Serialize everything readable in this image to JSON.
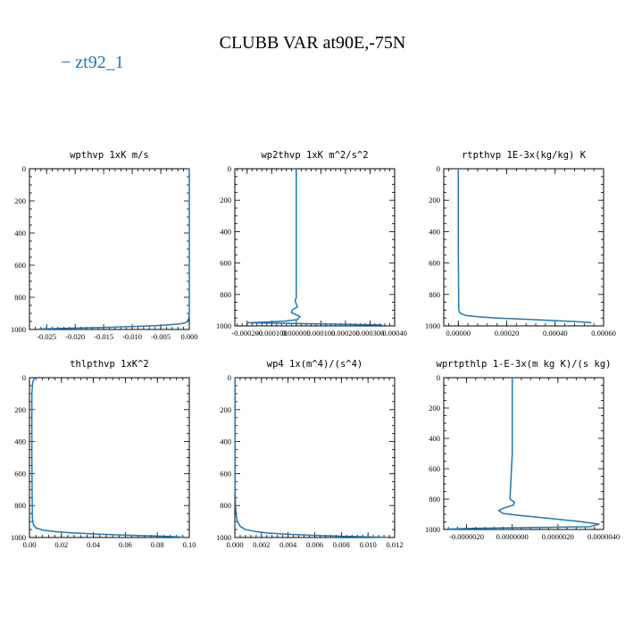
{
  "figure": {
    "title": "CLUBB VAR at90E,-75N",
    "legend_label": "zt92_1",
    "series_color": "#1f77b4"
  },
  "chart_data": [
    {
      "type": "line",
      "title": "wpthvp   1xK m/s",
      "xlim": [
        -0.028,
        0.0
      ],
      "ylim": [
        1000,
        0
      ],
      "xticks": [
        -0.025,
        -0.02,
        -0.015,
        -0.01,
        -0.005,
        0.0
      ],
      "xtick_labels": [
        "-0.025",
        "-0.020",
        "-0.015",
        "-0.010",
        "-0.005",
        "0.000"
      ],
      "yticks": [
        0,
        200,
        400,
        600,
        800,
        1000
      ],
      "ytick_labels": [
        "0",
        "200",
        "400",
        "600",
        "800",
        "1000"
      ],
      "x": [
        0.0,
        0.0,
        0.0,
        -0.0001,
        -0.0003,
        -0.0008,
        -0.002,
        -0.005,
        -0.01,
        -0.016,
        -0.022,
        -0.0265
      ],
      "y": [
        0,
        500,
        900,
        930,
        950,
        960,
        967,
        975,
        982,
        988,
        993,
        997
      ]
    },
    {
      "type": "line",
      "title": "wp2thvp   1xK m^2/s^2",
      "xlim": [
        -0.00025,
        0.0004
      ],
      "ylim": [
        1000,
        0
      ],
      "xticks": [
        -0.0002,
        -0.0001,
        0.0,
        0.0001,
        0.0002,
        0.0003,
        0.0004
      ],
      "xtick_labels": [
        "-0.000200",
        "-0.000100",
        "0.000000",
        "0.000100",
        "0.000200",
        "0.000300",
        "0.00040"
      ],
      "yticks": [
        0,
        200,
        400,
        600,
        800,
        1000
      ],
      "ytick_labels": [
        "0",
        "200",
        "400",
        "600",
        "800",
        "1000"
      ],
      "x": [
        0.0,
        0.0,
        0.0,
        -5e-06,
        0.0,
        5e-06,
        -1.5e-05,
        -2e-05,
        1.5e-05,
        5e-06,
        -5e-05,
        -0.00012,
        -0.0002,
        0.0001,
        0.0002,
        0.00035
      ],
      "y": [
        0,
        500,
        820,
        840,
        860,
        880,
        895,
        915,
        940,
        960,
        970,
        975,
        980,
        987,
        990,
        994
      ]
    },
    {
      "type": "line",
      "title": "rtpthvp   1E-3x(kg/kg) K",
      "xlim": [
        -6e-05,
        0.0006
      ],
      "ylim": [
        1000,
        0
      ],
      "xticks": [
        0.0,
        0.0002,
        0.0004,
        0.0006
      ],
      "xtick_labels": [
        "0.00000",
        "0.00020",
        "0.00040",
        "0.00060"
      ],
      "yticks": [
        0,
        200,
        400,
        600,
        800,
        1000
      ],
      "ytick_labels": [
        "0",
        "200",
        "400",
        "600",
        "800",
        "1000"
      ],
      "x": [
        0.0,
        0.0,
        2e-06,
        8e-06,
        3e-05,
        8e-05,
        0.00016,
        0.00026,
        0.00036,
        0.00045,
        0.00052,
        0.00055
      ],
      "y": [
        0,
        500,
        900,
        920,
        933,
        942,
        950,
        957,
        964,
        970,
        976,
        980
      ]
    },
    {
      "type": "line",
      "title": "thlpthvp   1xK^2",
      "xlim": [
        0.0,
        0.1
      ],
      "ylim": [
        1000,
        0
      ],
      "xticks": [
        0.0,
        0.02,
        0.04,
        0.06,
        0.08,
        0.1
      ],
      "xtick_labels": [
        "0.00",
        "0.02",
        "0.04",
        "0.06",
        "0.08",
        "0.10"
      ],
      "yticks": [
        0,
        200,
        400,
        600,
        800,
        1000
      ],
      "ytick_labels": [
        "0",
        "200",
        "400",
        "600",
        "800",
        "1000"
      ],
      "x": [
        0.003,
        0.002,
        0.0015,
        0.0015,
        0.0018,
        0.0025,
        0.004,
        0.008,
        0.015,
        0.025,
        0.04,
        0.06,
        0.08,
        0.093,
        0.096
      ],
      "y": [
        0,
        30,
        100,
        500,
        880,
        920,
        940,
        953,
        962,
        970,
        978,
        985,
        991,
        996,
        999
      ]
    },
    {
      "type": "line",
      "title": "wp4   1x(m^4)/(s^4)",
      "xlim": [
        0.0,
        0.012
      ],
      "ylim": [
        1000,
        0
      ],
      "xticks": [
        0.0,
        0.002,
        0.004,
        0.006,
        0.008,
        0.01,
        0.012
      ],
      "xtick_labels": [
        "0.000",
        "0.002",
        "0.004",
        "0.006",
        "0.008",
        "0.010",
        "0.012"
      ],
      "yticks": [
        0,
        200,
        400,
        600,
        800,
        1000
      ],
      "ytick_labels": [
        "0",
        "200",
        "400",
        "600",
        "800",
        "1000"
      ],
      "x": [
        2e-05,
        2e-05,
        5e-05,
        0.0001,
        0.0002,
        0.0004,
        0.0008,
        0.0015,
        0.0025,
        0.004,
        0.006,
        0.008,
        0.01,
        0.0115
      ],
      "y": [
        0,
        700,
        800,
        860,
        900,
        930,
        950,
        962,
        972,
        980,
        987,
        992,
        996,
        999
      ]
    },
    {
      "type": "line",
      "title": "wprtpthlp   1-E-3x(m kg K)/(s kg)",
      "xlim": [
        -3e-06,
        4e-06
      ],
      "ylim": [
        1000,
        0
      ],
      "xticks": [
        -2e-06,
        0.0,
        2e-06,
        4e-06
      ],
      "xtick_labels": [
        "-0.0000020",
        "0.0000000",
        "0.0000020",
        "0.0000040"
      ],
      "yticks": [
        0,
        200,
        400,
        600,
        800,
        1000
      ],
      "ytick_labels": [
        "0",
        "200",
        "400",
        "600",
        "800",
        "1000"
      ],
      "x": [
        0.0,
        0.0,
        -1e-07,
        1e-07,
        5e-08,
        -3e-07,
        -6e-07,
        -4e-07,
        5e-07,
        1.5e-06,
        2.8e-06,
        3.8e-06,
        3.4e-06,
        -1.5e-06,
        -2.8e-06
      ],
      "y": [
        0,
        500,
        800,
        820,
        840,
        855,
        875,
        895,
        910,
        925,
        945,
        965,
        982,
        992,
        997
      ]
    }
  ]
}
